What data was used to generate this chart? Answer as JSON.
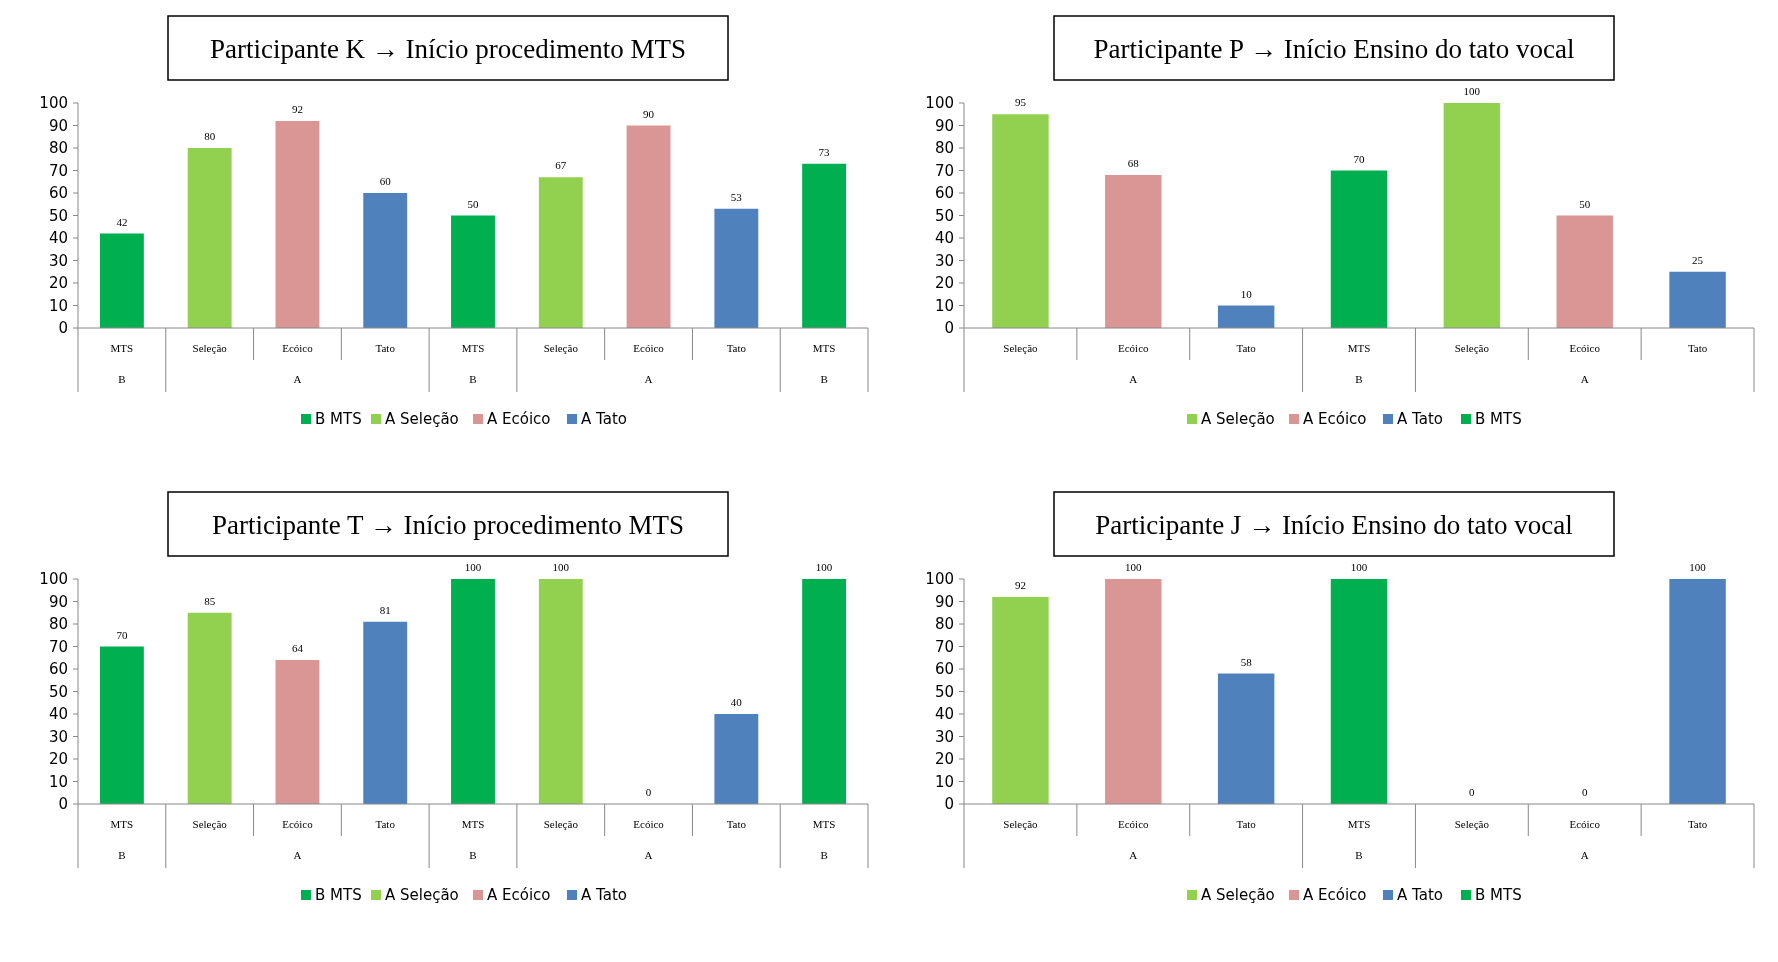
{
  "chart_data": [
    {
      "type": "bar",
      "title": "Participante K → Início procedimento MTS",
      "categories": [
        "MTS",
        "Seleção",
        "Ecóico",
        "Tato",
        "MTS",
        "Seleção",
        "Ecóico",
        "Tato",
        "MTS"
      ],
      "annotations": [
        "B",
        "A",
        "B",
        "A",
        "B"
      ],
      "ylim": [
        0,
        100
      ],
      "yticks": [
        0,
        10,
        20,
        30,
        40,
        50,
        60,
        70,
        80,
        90,
        100
      ],
      "data_labels": true,
      "legend": "bottom",
      "series": [
        {
          "name": "B MTS",
          "color": "#00b050",
          "values": [
            42,
            null,
            null,
            null,
            50,
            null,
            null,
            null,
            73
          ]
        },
        {
          "name": "A Seleção",
          "color": "#92d050",
          "values": [
            null,
            80,
            null,
            null,
            null,
            67,
            null,
            null,
            null
          ]
        },
        {
          "name": "A Ecóico",
          "color": "#da9694",
          "values": [
            null,
            null,
            92,
            null,
            null,
            null,
            90,
            null,
            null
          ]
        },
        {
          "name": "A Tato",
          "color": "#4f81bd",
          "values": [
            null,
            null,
            null,
            60,
            null,
            null,
            null,
            53,
            null
          ]
        }
      ]
    },
    {
      "type": "bar",
      "title": "Participante P → Início Ensino do tato vocal",
      "categories": [
        "Seleção",
        "Ecóico",
        "Tato",
        "MTS",
        "Seleção",
        "Ecóico",
        "Tato"
      ],
      "annotations": [
        "A",
        "B",
        "A"
      ],
      "ylim": [
        0,
        100
      ],
      "yticks": [
        0,
        10,
        20,
        30,
        40,
        50,
        60,
        70,
        80,
        90,
        100
      ],
      "data_labels": true,
      "legend": "bottom",
      "series": [
        {
          "name": "A Seleção",
          "color": "#92d050",
          "values": [
            95,
            null,
            null,
            null,
            100,
            null,
            null
          ]
        },
        {
          "name": "A Ecóico",
          "color": "#da9694",
          "values": [
            null,
            68,
            null,
            null,
            null,
            50,
            null
          ]
        },
        {
          "name": "A Tato",
          "color": "#4f81bd",
          "values": [
            null,
            null,
            10,
            null,
            null,
            null,
            25
          ]
        },
        {
          "name": "B MTS",
          "color": "#00b050",
          "values": [
            null,
            null,
            null,
            70,
            null,
            null,
            null
          ]
        }
      ]
    },
    {
      "type": "bar",
      "title": "Participante T → Início procedimento MTS",
      "categories": [
        "MTS",
        "Seleção",
        "Ecóico",
        "Tato",
        "MTS",
        "Seleção",
        "Ecóico",
        "Tato",
        "MTS"
      ],
      "annotations": [
        "B",
        "A",
        "B",
        "A",
        "B"
      ],
      "ylim": [
        0,
        100
      ],
      "yticks": [
        0,
        10,
        20,
        30,
        40,
        50,
        60,
        70,
        80,
        90,
        100
      ],
      "data_labels": true,
      "legend": "bottom",
      "series": [
        {
          "name": "B MTS",
          "color": "#00b050",
          "values": [
            70,
            null,
            null,
            null,
            100,
            null,
            null,
            null,
            100
          ]
        },
        {
          "name": "A Seleção",
          "color": "#92d050",
          "values": [
            null,
            85,
            null,
            null,
            null,
            100,
            null,
            null,
            null
          ]
        },
        {
          "name": "A Ecóico",
          "color": "#da9694",
          "values": [
            null,
            null,
            64,
            null,
            null,
            null,
            0,
            null,
            null
          ]
        },
        {
          "name": "A Tato",
          "color": "#4f81bd",
          "values": [
            null,
            null,
            null,
            81,
            null,
            null,
            null,
            40,
            null
          ]
        }
      ]
    },
    {
      "type": "bar",
      "title": "Participante J → Início Ensino do tato vocal",
      "categories": [
        "Seleção",
        "Ecóico",
        "Tato",
        "MTS",
        "Seleção",
        "Ecóico",
        "Tato"
      ],
      "annotations": [
        "A",
        "B",
        "A"
      ],
      "ylim": [
        0,
        100
      ],
      "yticks": [
        0,
        10,
        20,
        30,
        40,
        50,
        60,
        70,
        80,
        90,
        100
      ],
      "data_labels": true,
      "legend": "bottom",
      "series": [
        {
          "name": "A Seleção",
          "color": "#92d050",
          "values": [
            92,
            null,
            null,
            null,
            0,
            null,
            null
          ]
        },
        {
          "name": "A Ecóico",
          "color": "#da9694",
          "values": [
            null,
            100,
            null,
            null,
            null,
            0,
            null
          ]
        },
        {
          "name": "A Tato",
          "color": "#4f81bd",
          "values": [
            null,
            null,
            58,
            null,
            null,
            null,
            100
          ]
        },
        {
          "name": "B MTS",
          "color": "#00b050",
          "values": [
            null,
            null,
            null,
            100,
            null,
            null,
            null
          ]
        }
      ]
    }
  ]
}
